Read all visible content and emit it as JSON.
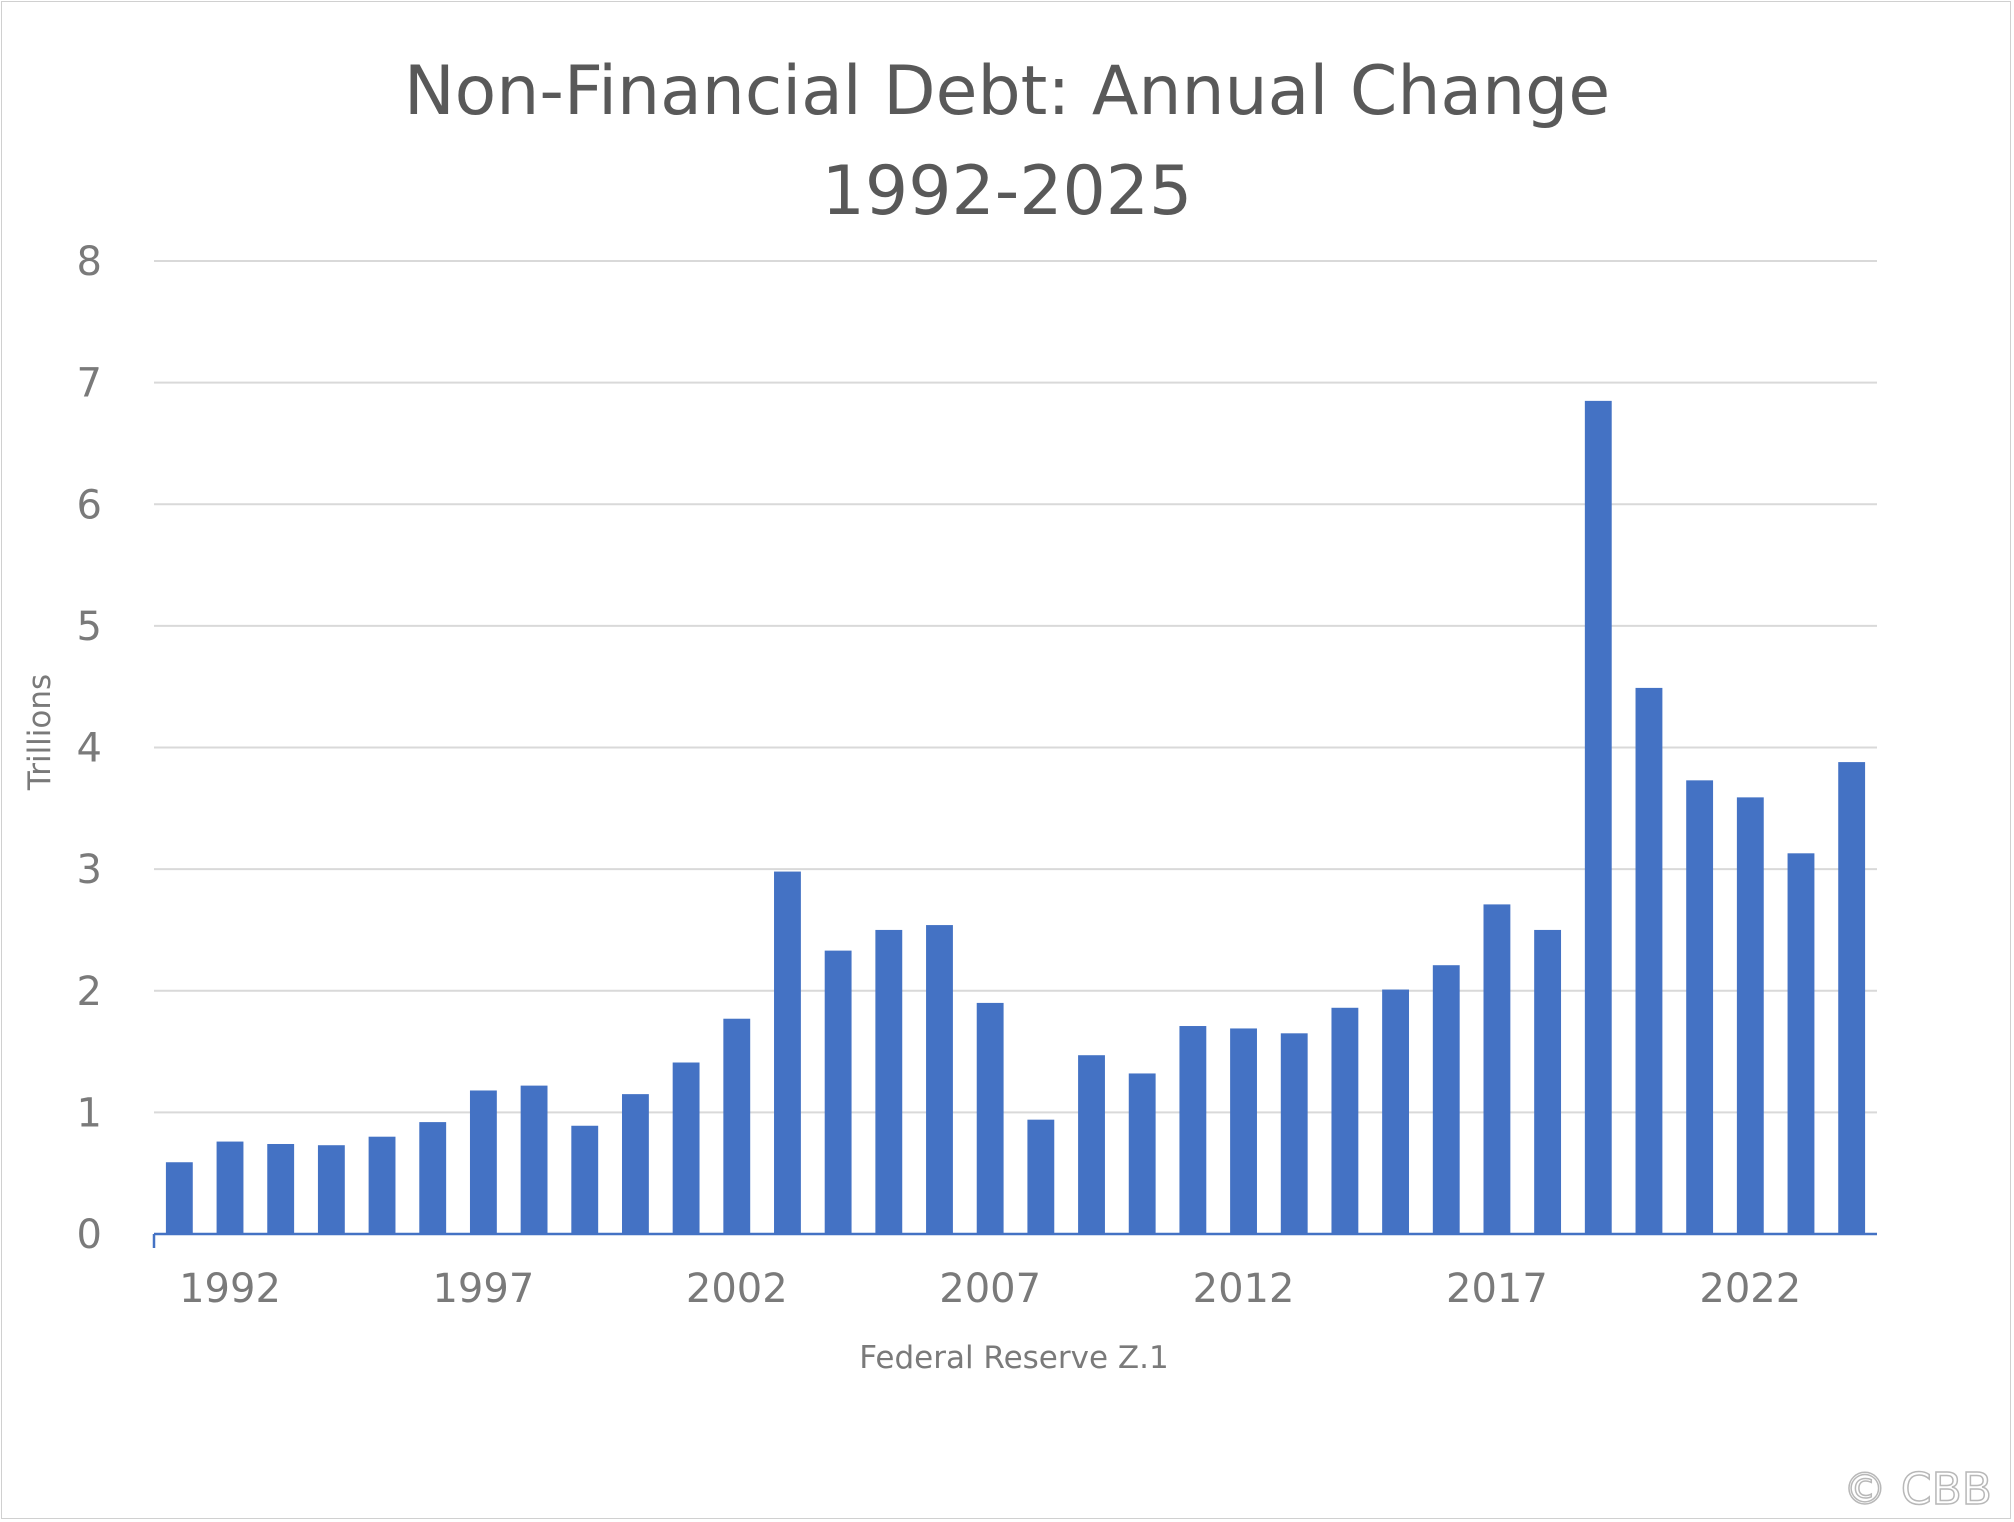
{
  "chart_data": {
    "type": "bar",
    "title_line1": "Non-Financial Debt: Annual Change",
    "title_line2": "1992-2025",
    "ylabel": "Trillions",
    "xlabel": "Federal Reserve Z.1",
    "ylim": [
      0,
      8
    ],
    "yticks": [
      0,
      1,
      2,
      3,
      4,
      5,
      6,
      7,
      8
    ],
    "xtick_labels": [
      "1992",
      "1997",
      "2002",
      "2007",
      "2012",
      "2017",
      "2022"
    ],
    "grid": true,
    "bar_color": "#4472c4",
    "categories": [
      "1991",
      "1992",
      "1993",
      "1994",
      "1995",
      "1996",
      "1997",
      "1998",
      "1999",
      "2000",
      "2001",
      "2002",
      "2003",
      "2004",
      "2005",
      "2006",
      "2007",
      "2008",
      "2009",
      "2010",
      "2011",
      "2012",
      "2013",
      "2014",
      "2015",
      "2016",
      "2017",
      "2018",
      "2019",
      "2020",
      "2021",
      "2022",
      "2023",
      "2024"
    ],
    "values": [
      0.59,
      0.76,
      0.74,
      0.73,
      0.8,
      0.92,
      1.18,
      1.22,
      0.89,
      1.15,
      1.41,
      1.77,
      2.98,
      2.33,
      2.5,
      2.54,
      1.9,
      0.94,
      1.47,
      1.32,
      1.71,
      1.69,
      1.65,
      1.86,
      2.01,
      2.21,
      2.71,
      2.5,
      6.85,
      4.49,
      3.73,
      3.59,
      3.13,
      3.88
    ]
  },
  "watermark": "© CBB"
}
